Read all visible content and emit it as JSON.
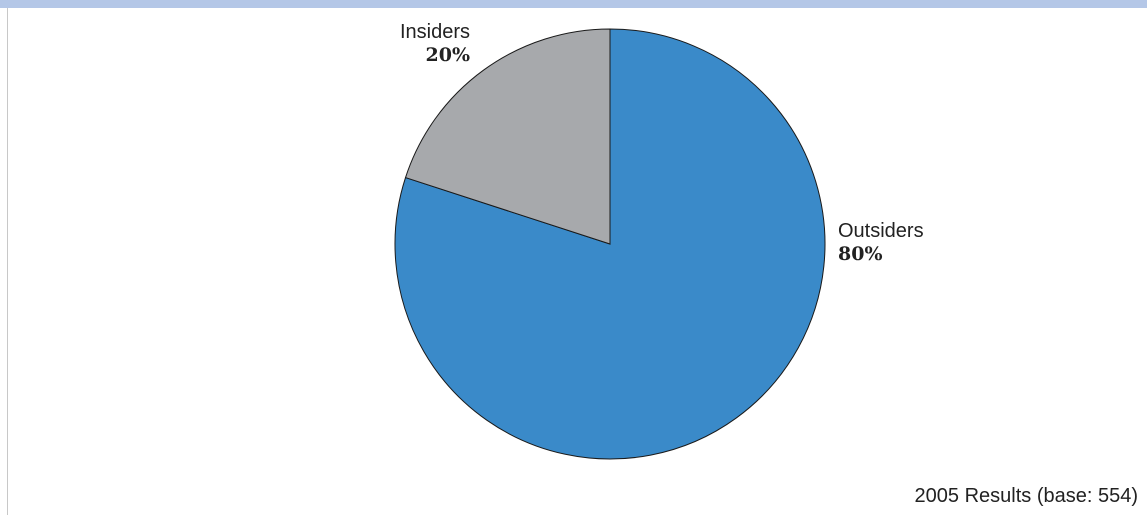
{
  "colors": {
    "top_bar": "#b4c7e7",
    "outsiders": "#3a8ac9",
    "insiders": "#a7a9ac",
    "outline": "#1a1a1a"
  },
  "chart_data": {
    "type": "pie",
    "slices": [
      {
        "name": "Outsiders",
        "value": 80,
        "label": "80%",
        "color": "#3a8ac9"
      },
      {
        "name": "Insiders",
        "value": 20,
        "label": "20%",
        "color": "#a7a9ac"
      }
    ],
    "footnote": "2005 Results (base: 554)"
  }
}
